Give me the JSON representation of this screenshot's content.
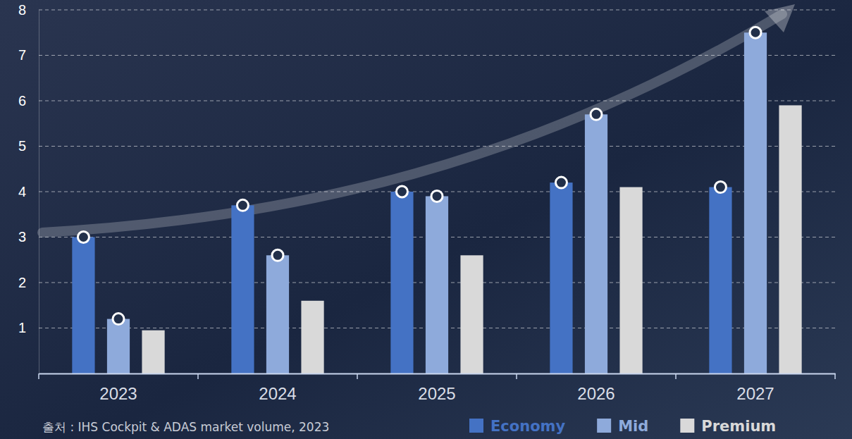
{
  "chart_data": {
    "type": "bar",
    "categories": [
      "2023",
      "2024",
      "2025",
      "2026",
      "2027"
    ],
    "series": [
      {
        "name": "Economy",
        "color": "#4472c4",
        "marker": "circle",
        "values": [
          3.0,
          3.7,
          4.0,
          4.2,
          4.1
        ]
      },
      {
        "name": "Mid",
        "color": "#8eaadb",
        "marker": "circle",
        "values": [
          1.2,
          2.6,
          3.9,
          5.7,
          7.5
        ]
      },
      {
        "name": "Premium",
        "color": "#d9d9d9",
        "values": [
          0.95,
          1.6,
          2.6,
          4.1,
          5.9
        ]
      }
    ],
    "ylim": [
      0,
      8
    ],
    "yticks": [
      1,
      2,
      3,
      4,
      5,
      6,
      7,
      8
    ],
    "grid": true,
    "legend": "lower right",
    "annotations": [
      "출처 : IHS Cockpit & ADAS market volume, 2023"
    ]
  }
}
